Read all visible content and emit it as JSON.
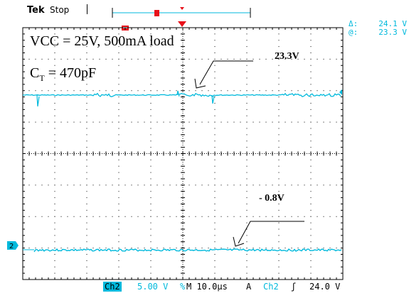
{
  "header": {
    "brand": "Tek",
    "run_state": "Stop"
  },
  "cursor_readout": {
    "delta_symbol": "Δ:",
    "delta_value": "24.1 V",
    "at_symbol": "@:",
    "at_value": "23.3 V"
  },
  "annotations": {
    "supply": "VCC = 25V, 500mA load",
    "cap_prefix": "C",
    "cap_sub": "T",
    "cap_value": " = 470pF",
    "high_level": "23.3V",
    "low_level": "- 0.8V"
  },
  "markers": {
    "channel_ground": "2"
  },
  "status_bar": {
    "channel": "Ch2",
    "volts_per_div": "5.00 V",
    "bw_symbol": "%",
    "timebase": "M 10.0µs",
    "trigger_mode": "A",
    "trigger_source": "Ch2",
    "trigger_slope": "ʃ",
    "trigger_level": "24.0 V"
  },
  "colors": {
    "trace": "#00b9dc",
    "grid": "#000000",
    "annotation": "#000000"
  }
}
